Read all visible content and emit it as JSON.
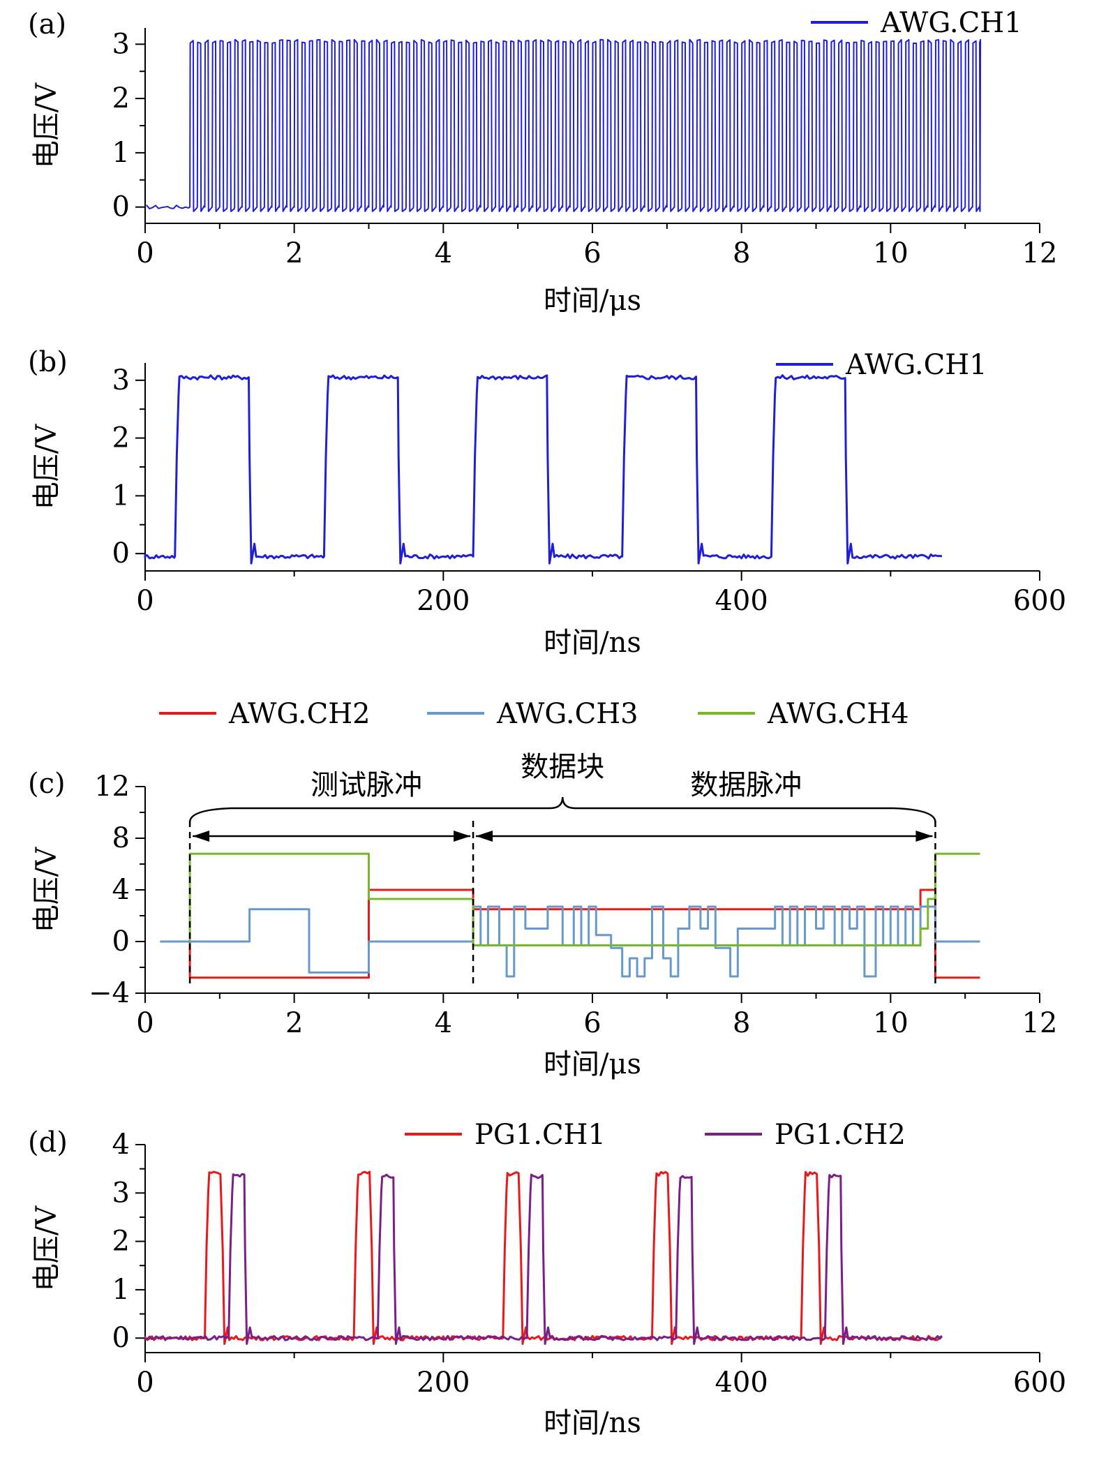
{
  "figure": {
    "panels": [
      "(a)",
      "(b)",
      "(c)",
      "(d)"
    ]
  },
  "chart_data": [
    {
      "id": "a",
      "type": "line",
      "panel_label": "(a)",
      "xlabel": "时间/μs",
      "ylabel": "电压/V",
      "xlim": [
        0,
        12
      ],
      "ylim": [
        -0.3,
        3.3
      ],
      "xticks": [
        0,
        2,
        4,
        6,
        8,
        10,
        12
      ],
      "yticks": [
        0,
        1,
        2,
        3
      ],
      "legend_position": "top-right",
      "series": [
        {
          "name": "AWG.CH1",
          "color": "#1f1fd6",
          "pattern": "square_train",
          "baseline": 0,
          "high": 3.05,
          "start": 0.6,
          "period": 0.1,
          "duty": 0.5,
          "end": 11.2
        }
      ]
    },
    {
      "id": "b",
      "type": "line",
      "panel_label": "(b)",
      "xlabel": "时间/ns",
      "ylabel": "电压/V",
      "xlim": [
        0,
        600
      ],
      "ylim": [
        -0.3,
        3.3
      ],
      "xticks": [
        0,
        200,
        400,
        600
      ],
      "yticks": [
        0,
        1,
        2,
        3
      ],
      "legend_position": "top-right",
      "series": [
        {
          "name": "AWG.CH1",
          "color": "#1f1fd6",
          "pattern": "pulses",
          "baseline": -0.05,
          "high": 3.05,
          "pulses": [
            [
              20,
              70
            ],
            [
              120,
              170
            ],
            [
              220,
              270
            ],
            [
              320,
              370
            ],
            [
              420,
              470
            ]
          ],
          "end": 535
        }
      ]
    },
    {
      "id": "c",
      "type": "line",
      "panel_label": "(c)",
      "xlabel": "时间/μs",
      "ylabel": "电压/V",
      "xlim": [
        0,
        12
      ],
      "ylim": [
        -4,
        12
      ],
      "xticks": [
        0,
        2,
        4,
        6,
        8,
        10,
        12
      ],
      "yticks": [
        -4,
        0,
        4,
        8,
        12
      ],
      "ytick_labels": [
        "−4",
        "0",
        "4",
        "8",
        "12"
      ],
      "legend_position": "top",
      "annotations": {
        "brace_label": "数据块",
        "left_label": "测试脉冲",
        "right_label": "数据脉冲",
        "markers_x": [
          0.6,
          4.4,
          10.6
        ]
      },
      "series": [
        {
          "name": "AWG.CH2",
          "color": "#e8191b",
          "points": [
            [
              0.6,
              0
            ],
            [
              0.6,
              -2.8
            ],
            [
              3.0,
              -2.8
            ],
            [
              3.0,
              4.0
            ],
            [
              4.4,
              4.0
            ],
            [
              4.4,
              2.5
            ],
            [
              10.4,
              2.5
            ],
            [
              10.4,
              4.0
            ],
            [
              10.6,
              4.0
            ],
            [
              10.6,
              -2.8
            ],
            [
              11.2,
              -2.8
            ]
          ]
        },
        {
          "name": "AWG.CH3",
          "color": "#6699cc",
          "points": [
            [
              0.2,
              0
            ],
            [
              1.4,
              0
            ],
            [
              1.4,
              2.5
            ],
            [
              2.2,
              2.5
            ],
            [
              2.2,
              -2.4
            ],
            [
              3.0,
              -2.4
            ],
            [
              3.0,
              0
            ],
            [
              4.4,
              0
            ],
            [
              4.4,
              2.7
            ],
            [
              4.5,
              2.7
            ],
            [
              4.5,
              -0.3
            ],
            [
              4.6,
              -0.3
            ],
            [
              4.6,
              2.7
            ],
            [
              4.75,
              2.7
            ],
            [
              4.75,
              -0.3
            ],
            [
              4.85,
              -0.3
            ],
            [
              4.85,
              -2.7
            ],
            [
              4.95,
              -2.7
            ],
            [
              4.95,
              2.7
            ],
            [
              5.1,
              2.7
            ],
            [
              5.1,
              1.0
            ],
            [
              5.4,
              1.0
            ],
            [
              5.4,
              2.7
            ],
            [
              5.6,
              2.7
            ],
            [
              5.6,
              -0.3
            ],
            [
              5.75,
              -0.3
            ],
            [
              5.75,
              2.7
            ],
            [
              5.85,
              2.7
            ],
            [
              5.85,
              -0.3
            ],
            [
              5.95,
              -0.3
            ],
            [
              5.95,
              2.7
            ],
            [
              6.05,
              2.7
            ],
            [
              6.05,
              0.5
            ],
            [
              6.25,
              0.5
            ],
            [
              6.25,
              -0.5
            ],
            [
              6.4,
              -0.5
            ],
            [
              6.4,
              -2.7
            ],
            [
              6.5,
              -2.7
            ],
            [
              6.5,
              -1.3
            ],
            [
              6.6,
              -1.3
            ],
            [
              6.6,
              -2.7
            ],
            [
              6.7,
              -2.7
            ],
            [
              6.7,
              -1.3
            ],
            [
              6.8,
              -1.3
            ],
            [
              6.8,
              2.7
            ],
            [
              6.95,
              2.7
            ],
            [
              6.95,
              -1.3
            ],
            [
              7.05,
              -1.3
            ],
            [
              7.05,
              -2.7
            ],
            [
              7.15,
              -2.7
            ],
            [
              7.15,
              1.0
            ],
            [
              7.3,
              1.0
            ],
            [
              7.3,
              2.7
            ],
            [
              7.45,
              2.7
            ],
            [
              7.45,
              1.0
            ],
            [
              7.55,
              1.0
            ],
            [
              7.55,
              2.7
            ],
            [
              7.65,
              2.7
            ],
            [
              7.65,
              -0.5
            ],
            [
              7.85,
              -0.5
            ],
            [
              7.85,
              -2.7
            ],
            [
              7.95,
              -2.7
            ],
            [
              7.95,
              1.0
            ],
            [
              8.45,
              1.0
            ],
            [
              8.45,
              2.7
            ],
            [
              8.55,
              2.7
            ],
            [
              8.55,
              -0.3
            ],
            [
              8.65,
              -0.3
            ],
            [
              8.65,
              2.7
            ],
            [
              8.75,
              2.7
            ],
            [
              8.75,
              -0.3
            ],
            [
              8.85,
              -0.3
            ],
            [
              8.85,
              2.7
            ],
            [
              9.0,
              2.7
            ],
            [
              9.0,
              1.0
            ],
            [
              9.1,
              1.0
            ],
            [
              9.1,
              2.7
            ],
            [
              9.25,
              2.7
            ],
            [
              9.25,
              -0.3
            ],
            [
              9.35,
              -0.3
            ],
            [
              9.35,
              2.7
            ],
            [
              9.45,
              2.7
            ],
            [
              9.45,
              1.0
            ],
            [
              9.55,
              1.0
            ],
            [
              9.55,
              2.7
            ],
            [
              9.65,
              2.7
            ],
            [
              9.65,
              -2.7
            ],
            [
              9.8,
              -2.7
            ],
            [
              9.8,
              2.7
            ],
            [
              9.9,
              2.7
            ],
            [
              9.9,
              -0.3
            ],
            [
              10.0,
              -0.3
            ],
            [
              10.0,
              2.7
            ],
            [
              10.1,
              2.7
            ],
            [
              10.1,
              -0.3
            ],
            [
              10.2,
              -0.3
            ],
            [
              10.2,
              2.7
            ],
            [
              10.3,
              2.7
            ],
            [
              10.3,
              -0.3
            ],
            [
              10.4,
              -0.3
            ],
            [
              10.4,
              2.7
            ],
            [
              10.6,
              2.7
            ],
            [
              10.6,
              0
            ],
            [
              11.2,
              0
            ]
          ]
        },
        {
          "name": "AWG.CH4",
          "color": "#77b82a",
          "points": [
            [
              0.6,
              0
            ],
            [
              0.6,
              6.8
            ],
            [
              3.0,
              6.8
            ],
            [
              3.0,
              3.3
            ],
            [
              4.4,
              3.3
            ],
            [
              4.4,
              -0.3
            ],
            [
              10.4,
              -0.3
            ],
            [
              10.4,
              1.0
            ],
            [
              10.5,
              1.0
            ],
            [
              10.5,
              3.3
            ],
            [
              10.6,
              3.3
            ],
            [
              10.6,
              6.8
            ],
            [
              11.2,
              6.8
            ]
          ]
        }
      ]
    },
    {
      "id": "d",
      "type": "line",
      "panel_label": "(d)",
      "xlabel": "时间/ns",
      "ylabel": "电压/V",
      "xlim": [
        0,
        600
      ],
      "ylim": [
        -0.3,
        4.0
      ],
      "xticks": [
        0,
        200,
        400,
        600
      ],
      "yticks": [
        0,
        1,
        2,
        3,
        4
      ],
      "legend_position": "top-right",
      "series": [
        {
          "name": "PG1.CH1",
          "color": "#e8191b",
          "pattern": "pulses",
          "baseline": 0,
          "high": 3.4,
          "pulses": [
            [
              40,
              52
            ],
            [
              140,
              152
            ],
            [
              240,
              252
            ],
            [
              340,
              352
            ],
            [
              440,
              452
            ]
          ],
          "end": 535
        },
        {
          "name": "PG1.CH2",
          "color": "#7a1f86",
          "pattern": "pulses",
          "baseline": 0,
          "high": 3.35,
          "pulses": [
            [
              56,
              67
            ],
            [
              156,
              167
            ],
            [
              256,
              267
            ],
            [
              356,
              367
            ],
            [
              456,
              467
            ]
          ],
          "end": 535
        }
      ]
    }
  ]
}
